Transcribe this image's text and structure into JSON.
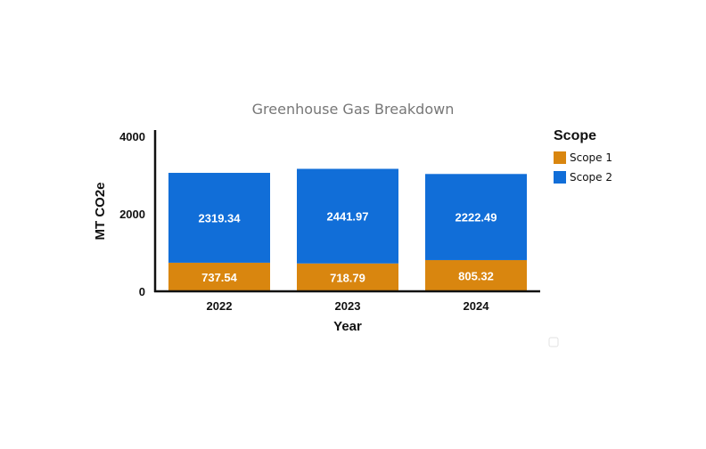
{
  "chart_data": {
    "type": "bar",
    "stacked": true,
    "title": "Greenhouse Gas Breakdown",
    "xlabel": "Year",
    "ylabel": "MT CO2e",
    "categories": [
      "2022",
      "2023",
      "2024"
    ],
    "y_ticks": [
      "0",
      "2000",
      "4000"
    ],
    "ylim": [
      0,
      4000
    ],
    "grid": false,
    "legend": {
      "title": "Scope",
      "position": "right"
    },
    "series": [
      {
        "name": "Scope 1",
        "color": "#d9860f",
        "values": [
          737.54,
          718.79,
          805.32
        ],
        "labels": [
          "737.54",
          "718.79",
          "805.32"
        ]
      },
      {
        "name": "Scope 2",
        "color": "#116ed8",
        "values": [
          2319.34,
          2441.97,
          2222.49
        ],
        "labels": [
          "2319.34",
          "2441.97",
          "2222.49"
        ]
      }
    ]
  }
}
